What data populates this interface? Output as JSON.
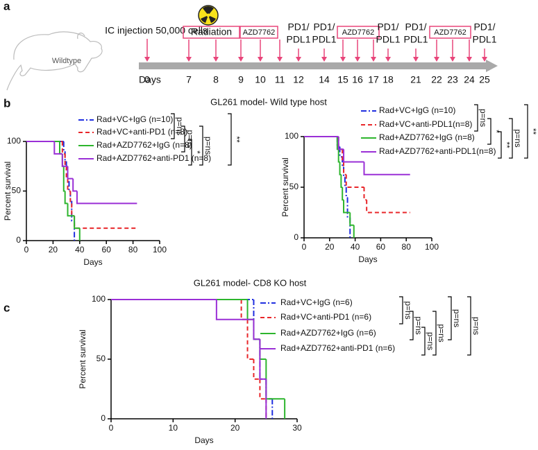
{
  "panels": [
    "a",
    "b",
    "c"
  ],
  "timeline": {
    "subject": "Wildtype",
    "axis_label": "Days",
    "days": [
      0,
      7,
      8,
      9,
      10,
      11,
      12,
      14,
      15,
      16,
      17,
      18,
      21,
      22,
      23,
      24,
      25
    ],
    "events": [
      {
        "lines": [
          "IC injection 50,000 cells"
        ]
      },
      {
        "lines": [
          "Radiation"
        ]
      },
      {
        "lines": [
          "AZD7762"
        ]
      },
      {
        "lines": [
          "PD1/",
          "PDL1"
        ]
      },
      {
        "lines": [
          "PD1/",
          "PDL1"
        ]
      },
      {
        "lines": [
          "AZD7762"
        ]
      },
      {
        "lines": [
          "PD1/",
          "PDL1"
        ]
      },
      {
        "lines": [
          "PD1/",
          "PDL1"
        ]
      },
      {
        "lines": [
          "AZD7762"
        ]
      },
      {
        "lines": [
          "PD1/",
          "PDL1"
        ]
      }
    ]
  },
  "chart_data": [
    {
      "type": "line",
      "step": "post",
      "title": "GL261  model- Wild type host",
      "xlabel": "Days",
      "ylabel": "Percent survival",
      "xlim": [
        0,
        100
      ],
      "ylim": [
        0,
        100
      ],
      "xticks": [
        0,
        20,
        40,
        60,
        80,
        100
      ],
      "yticks": [
        0,
        50,
        100
      ],
      "series": [
        {
          "name": "Rad+VC+IgG (n=10)",
          "color": "#1f2ee0",
          "dash": "dashdot",
          "x": [
            0,
            28,
            29,
            30,
            31,
            32,
            33,
            34,
            36
          ],
          "values": [
            100,
            90,
            80,
            70,
            60,
            50,
            40,
            20,
            0
          ]
        },
        {
          "name": "Rad+VC+anti-PD1 (n=8)",
          "color": "#e8262a",
          "dash": "dash",
          "x": [
            0,
            27,
            29,
            30,
            31,
            33,
            34,
            36,
            83
          ],
          "values": [
            100,
            87.5,
            75,
            62.5,
            50,
            37.5,
            25,
            12.5,
            12.5
          ]
        },
        {
          "name": "Rad+AZD7762+IgG (n=8)",
          "color": "#2db52d",
          "dash": "solid",
          "x": [
            0,
            25,
            27,
            28,
            29,
            31,
            36,
            40
          ],
          "values": [
            100,
            87.5,
            75,
            50,
            37.5,
            25,
            12.5,
            0
          ]
        },
        {
          "name": "Rad+AZD7762+anti-PD1 (n=8)",
          "color": "#9a2fd6",
          "dash": "solid",
          "x": [
            0,
            21,
            27,
            31,
            35,
            38,
            83
          ],
          "values": [
            100,
            87.5,
            75,
            62.5,
            50,
            37.5,
            37.5
          ]
        }
      ],
      "comparisons": [
        "p=ns",
        "p=ns",
        "*",
        "p=ns",
        "**"
      ]
    },
    {
      "type": "line",
      "step": "post",
      "xlabel": "Days",
      "ylabel": "Percent survival",
      "xlim": [
        0,
        100
      ],
      "ylim": [
        0,
        100
      ],
      "xticks": [
        0,
        20,
        40,
        60,
        80,
        100
      ],
      "yticks": [
        0,
        50,
        100
      ],
      "series": [
        {
          "name": "Rad+VC+IgG (n=10)",
          "color": "#1f2ee0",
          "dash": "dashdot",
          "x": [
            0,
            26,
            28,
            30,
            31,
            32,
            33,
            34,
            36
          ],
          "values": [
            100,
            90,
            80,
            70,
            60,
            50,
            40,
            20,
            0
          ]
        },
        {
          "name": "Rad+VC+anti-PDL1(n=8)",
          "color": "#e8262a",
          "dash": "dash",
          "x": [
            0,
            27,
            30,
            31,
            33,
            47,
            49,
            83
          ],
          "values": [
            100,
            87.5,
            75,
            62.5,
            50,
            37.5,
            25,
            25
          ]
        },
        {
          "name": "Rad+AZD7762+IgG (n=8)",
          "color": "#2db52d",
          "dash": "solid",
          "x": [
            0,
            26,
            27,
            28,
            29,
            30,
            31,
            36,
            39
          ],
          "values": [
            100,
            87.5,
            75,
            62.5,
            50,
            37.5,
            25,
            12.5,
            0
          ]
        },
        {
          "name": "Rad+AZD7762+anti-PDL1(n=8)",
          "color": "#9a2fd6",
          "dash": "solid",
          "x": [
            0,
            27,
            31,
            47,
            83
          ],
          "values": [
            100,
            87.5,
            75,
            62.5,
            62.5
          ]
        }
      ],
      "comparisons": [
        "p=ns",
        "*",
        "**",
        "p=ns",
        "**"
      ]
    },
    {
      "type": "line",
      "step": "post",
      "title": "GL261  model- CD8 KO host",
      "xlabel": "Days",
      "ylabel": "Percent survival",
      "xlim": [
        0,
        30
      ],
      "ylim": [
        0,
        100
      ],
      "xticks": [
        0,
        10,
        20,
        30
      ],
      "yticks": [
        0,
        50,
        100
      ],
      "series": [
        {
          "name": "Rad+VC+IgG (n=6)",
          "color": "#1f2ee0",
          "dash": "dashdot",
          "x": [
            0,
            23,
            24,
            25,
            26
          ],
          "values": [
            100,
            66.7,
            33.3,
            16.7,
            0
          ]
        },
        {
          "name": "Rad+VC+anti-PD1 (n=6)",
          "color": "#e8262a",
          "dash": "dash",
          "x": [
            0,
            21,
            22,
            23,
            24,
            25
          ],
          "values": [
            100,
            83.3,
            50,
            33.3,
            16.7,
            0
          ]
        },
        {
          "name": "Rad+AZD7762+IgG (n=6)",
          "color": "#2db52d",
          "dash": "solid",
          "x": [
            0,
            22,
            23,
            24,
            25,
            28
          ],
          "values": [
            100,
            83.3,
            66.7,
            50,
            16.7,
            0
          ]
        },
        {
          "name": "Rad+AZD7762+anti-PD1 (n=6)",
          "color": "#9a2fd6",
          "dash": "solid",
          "x": [
            0,
            17,
            23,
            24,
            25
          ],
          "values": [
            100,
            83.3,
            66.7,
            33.3,
            0
          ]
        }
      ],
      "comparisons": [
        "p=ns",
        "p=ns",
        "p=ns",
        "p=ns",
        "p=ns",
        "p=ns"
      ]
    }
  ]
}
